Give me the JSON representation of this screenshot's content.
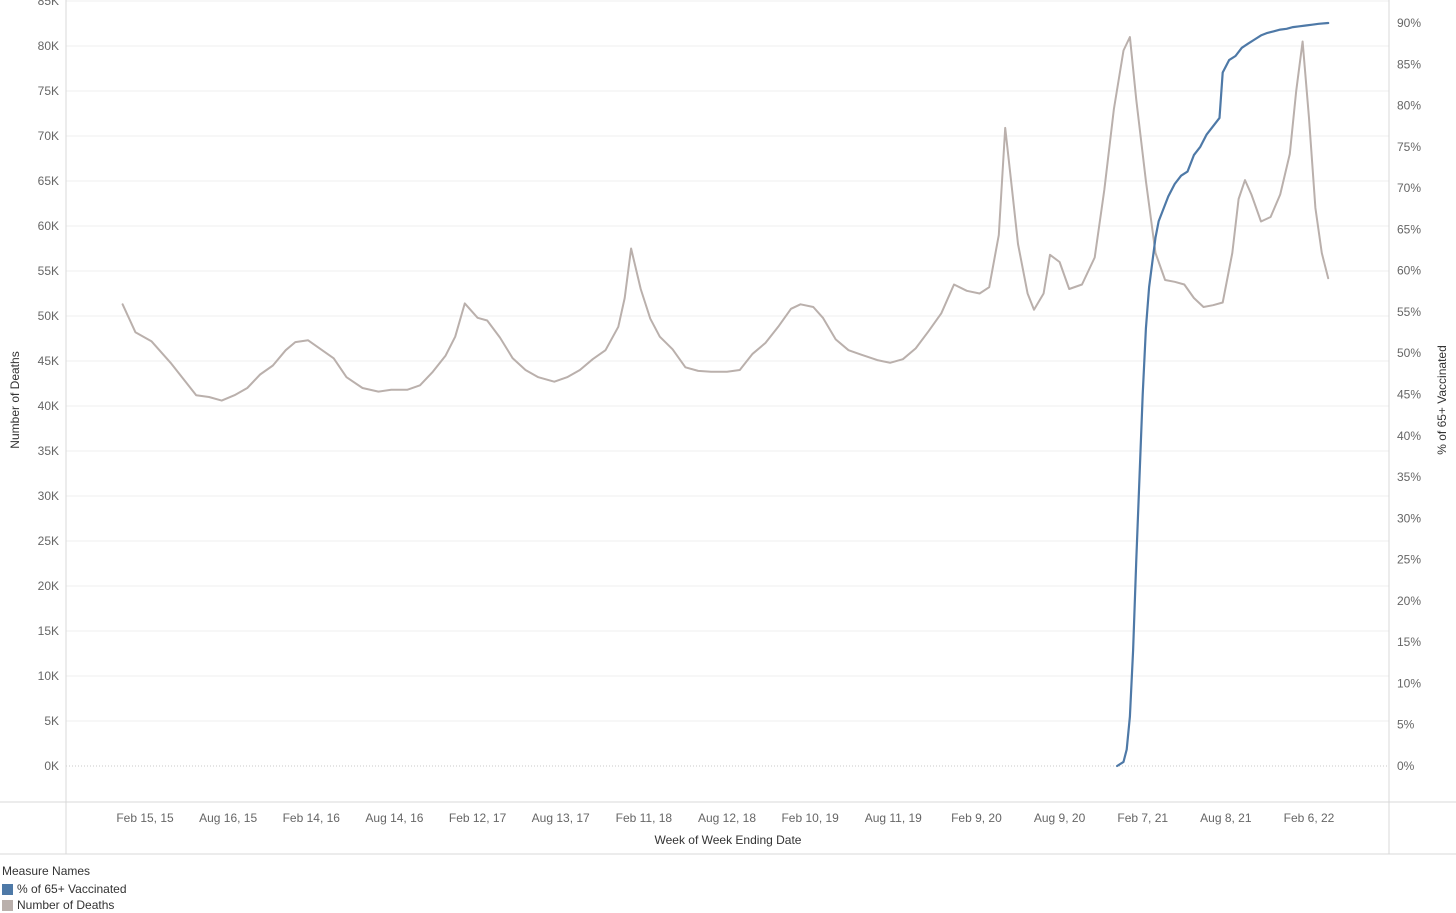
{
  "chart_data": {
    "type": "line",
    "xlabel": "Week of Week Ending Date",
    "ylabel_left": "Number of Deaths",
    "ylabel_right": "% of 65+ Vaccinated",
    "x_ticks": [
      "Feb 15, 15",
      "Aug 16, 15",
      "Feb 14, 16",
      "Aug 14, 16",
      "Feb 12, 17",
      "Aug 13, 17",
      "Feb 11, 18",
      "Aug 12, 18",
      "Feb 10, 19",
      "Aug 11, 19",
      "Feb 9, 20",
      "Aug 9, 20",
      "Feb 7, 21",
      "Aug 8, 21",
      "Feb 6, 22"
    ],
    "y_left_ticks": [
      "85K",
      "80K",
      "75K",
      "70K",
      "65K",
      "60K",
      "55K",
      "50K",
      "45K",
      "40K",
      "35K",
      "30K",
      "25K",
      "20K",
      "15K",
      "10K",
      "5K",
      "0K"
    ],
    "y_left_values": [
      85000,
      80000,
      75000,
      70000,
      65000,
      60000,
      55000,
      50000,
      45000,
      40000,
      35000,
      30000,
      25000,
      20000,
      15000,
      10000,
      5000,
      0
    ],
    "y_right_ticks": [
      "90%",
      "85%",
      "80%",
      "75%",
      "70%",
      "65%",
      "60%",
      "55%",
      "50%",
      "45%",
      "40%",
      "35%",
      "30%",
      "25%",
      "20%",
      "15%",
      "10%",
      "5%",
      "0%"
    ],
    "y_right_values": [
      90,
      85,
      80,
      75,
      70,
      65,
      60,
      55,
      50,
      45,
      40,
      35,
      30,
      25,
      20,
      15,
      10,
      5,
      0
    ],
    "ylim_left": [
      0,
      85000
    ],
    "ylim_right": [
      0,
      92
    ],
    "series": [
      {
        "name": "Number of Deaths",
        "color": "#bab0ac",
        "axis": "left",
        "points": [
          [
            "2014-12-28",
            51300
          ],
          [
            "2015-01-25",
            48200
          ],
          [
            "2015-03-01",
            47200
          ],
          [
            "2015-04-12",
            44800
          ],
          [
            "2015-05-10",
            43000
          ],
          [
            "2015-06-07",
            41200
          ],
          [
            "2015-07-05",
            41000
          ],
          [
            "2015-08-02",
            40600
          ],
          [
            "2015-08-30",
            41200
          ],
          [
            "2015-09-27",
            42000
          ],
          [
            "2015-10-25",
            43500
          ],
          [
            "2015-11-22",
            44500
          ],
          [
            "2015-12-20",
            46200
          ],
          [
            "2016-01-10",
            47100
          ],
          [
            "2016-02-07",
            47300
          ],
          [
            "2016-03-06",
            46300
          ],
          [
            "2016-04-03",
            45300
          ],
          [
            "2016-05-01",
            43200
          ],
          [
            "2016-06-05",
            42000
          ],
          [
            "2016-07-10",
            41600
          ],
          [
            "2016-08-07",
            41800
          ],
          [
            "2016-09-11",
            41800
          ],
          [
            "2016-10-09",
            42300
          ],
          [
            "2016-11-06",
            43800
          ],
          [
            "2016-12-04",
            45600
          ],
          [
            "2016-12-25",
            47700
          ],
          [
            "2017-01-15",
            51400
          ],
          [
            "2017-02-12",
            49800
          ],
          [
            "2017-03-05",
            49500
          ],
          [
            "2017-04-02",
            47600
          ],
          [
            "2017-04-30",
            45300
          ],
          [
            "2017-05-28",
            44000
          ],
          [
            "2017-06-25",
            43200
          ],
          [
            "2017-07-30",
            42700
          ],
          [
            "2017-08-27",
            43200
          ],
          [
            "2017-09-24",
            44000
          ],
          [
            "2017-10-22",
            45200
          ],
          [
            "2017-11-19",
            46200
          ],
          [
            "2017-12-17",
            48800
          ],
          [
            "2017-12-31",
            52000
          ],
          [
            "2018-01-14",
            57500
          ],
          [
            "2018-02-04",
            53000
          ],
          [
            "2018-02-25",
            49700
          ],
          [
            "2018-03-18",
            47700
          ],
          [
            "2018-04-15",
            46300
          ],
          [
            "2018-05-13",
            44300
          ],
          [
            "2018-06-10",
            43900
          ],
          [
            "2018-07-08",
            43800
          ],
          [
            "2018-08-12",
            43800
          ],
          [
            "2018-09-09",
            44000
          ],
          [
            "2018-10-07",
            45800
          ],
          [
            "2018-11-04",
            47000
          ],
          [
            "2018-12-02",
            48800
          ],
          [
            "2018-12-30",
            50800
          ],
          [
            "2019-01-20",
            51300
          ],
          [
            "2019-02-17",
            51000
          ],
          [
            "2019-03-10",
            49800
          ],
          [
            "2019-04-07",
            47400
          ],
          [
            "2019-05-05",
            46200
          ],
          [
            "2019-06-02",
            45700
          ],
          [
            "2019-07-07",
            45100
          ],
          [
            "2019-08-04",
            44800
          ],
          [
            "2019-09-01",
            45200
          ],
          [
            "2019-09-29",
            46400
          ],
          [
            "2019-10-27",
            48300
          ],
          [
            "2019-11-24",
            50300
          ],
          [
            "2019-12-22",
            53500
          ],
          [
            "2020-01-19",
            52800
          ],
          [
            "2020-02-16",
            52500
          ],
          [
            "2020-03-08",
            53200
          ],
          [
            "2020-03-29",
            59000
          ],
          [
            "2020-04-12",
            70900
          ],
          [
            "2020-04-26",
            64500
          ],
          [
            "2020-05-10",
            58000
          ],
          [
            "2020-05-31",
            52500
          ],
          [
            "2020-06-14",
            50700
          ],
          [
            "2020-07-05",
            52500
          ],
          [
            "2020-07-19",
            56800
          ],
          [
            "2020-08-09",
            56000
          ],
          [
            "2020-08-30",
            53000
          ],
          [
            "2020-09-27",
            53500
          ],
          [
            "2020-10-25",
            56500
          ],
          [
            "2020-11-15",
            64000
          ],
          [
            "2020-12-06",
            73000
          ],
          [
            "2020-12-27",
            79500
          ],
          [
            "2021-01-10",
            81000
          ],
          [
            "2021-01-24",
            74000
          ],
          [
            "2021-02-14",
            65000
          ],
          [
            "2021-03-07",
            57000
          ],
          [
            "2021-03-28",
            54000
          ],
          [
            "2021-04-18",
            53800
          ],
          [
            "2021-05-09",
            53500
          ],
          [
            "2021-05-30",
            52000
          ],
          [
            "2021-06-20",
            51000
          ],
          [
            "2021-07-11",
            51200
          ],
          [
            "2021-08-01",
            51500
          ],
          [
            "2021-08-22",
            57000
          ],
          [
            "2021-09-05",
            63000
          ],
          [
            "2021-09-19",
            65100
          ],
          [
            "2021-10-03",
            63500
          ],
          [
            "2021-10-24",
            60500
          ],
          [
            "2021-11-14",
            61000
          ],
          [
            "2021-12-05",
            63500
          ],
          [
            "2021-12-26",
            68000
          ],
          [
            "2022-01-09",
            75000
          ],
          [
            "2022-01-23",
            80500
          ],
          [
            "2022-02-06",
            72000
          ],
          [
            "2022-02-20",
            62000
          ],
          [
            "2022-03-06",
            57000
          ],
          [
            "2022-03-20",
            54200
          ]
        ]
      },
      {
        "name": "% of 65+ Vaccinated",
        "color": "#4e79a7",
        "axis": "right",
        "points": [
          [
            "2020-12-13",
            0
          ],
          [
            "2020-12-27",
            0.5
          ],
          [
            "2021-01-03",
            2
          ],
          [
            "2021-01-10",
            6
          ],
          [
            "2021-01-17",
            14
          ],
          [
            "2021-01-24",
            25
          ],
          [
            "2021-01-31",
            35
          ],
          [
            "2021-02-07",
            45
          ],
          [
            "2021-02-14",
            53
          ],
          [
            "2021-02-21",
            58
          ],
          [
            "2021-02-28",
            61
          ],
          [
            "2021-03-07",
            64
          ],
          [
            "2021-03-14",
            66
          ],
          [
            "2021-03-21",
            67
          ],
          [
            "2021-04-04",
            69
          ],
          [
            "2021-04-18",
            70.5
          ],
          [
            "2021-05-02",
            71.5
          ],
          [
            "2021-05-16",
            72
          ],
          [
            "2021-05-30",
            74
          ],
          [
            "2021-06-13",
            75
          ],
          [
            "2021-06-27",
            76.5
          ],
          [
            "2021-07-11",
            77.5
          ],
          [
            "2021-07-25",
            78.5
          ],
          [
            "2021-08-01",
            84
          ],
          [
            "2021-08-15",
            85.5
          ],
          [
            "2021-08-29",
            86
          ],
          [
            "2021-09-12",
            87
          ],
          [
            "2021-09-26",
            87.5
          ],
          [
            "2021-10-10",
            88
          ],
          [
            "2021-10-24",
            88.5
          ],
          [
            "2021-11-07",
            88.8
          ],
          [
            "2021-11-21",
            89
          ],
          [
            "2021-12-05",
            89.2
          ],
          [
            "2021-12-19",
            89.3
          ],
          [
            "2022-01-02",
            89.5
          ],
          [
            "2022-01-16",
            89.6
          ],
          [
            "2022-01-30",
            89.7
          ],
          [
            "2022-02-13",
            89.8
          ],
          [
            "2022-02-27",
            89.9
          ],
          [
            "2022-03-20",
            90
          ]
        ]
      }
    ],
    "legend": {
      "title": "Measure Names",
      "placement": "bottom-left",
      "items": [
        {
          "label": "% of 65+ Vaccinated",
          "color": "#4e79a7"
        },
        {
          "label": "Number of Deaths",
          "color": "#bab0ac"
        }
      ]
    }
  }
}
